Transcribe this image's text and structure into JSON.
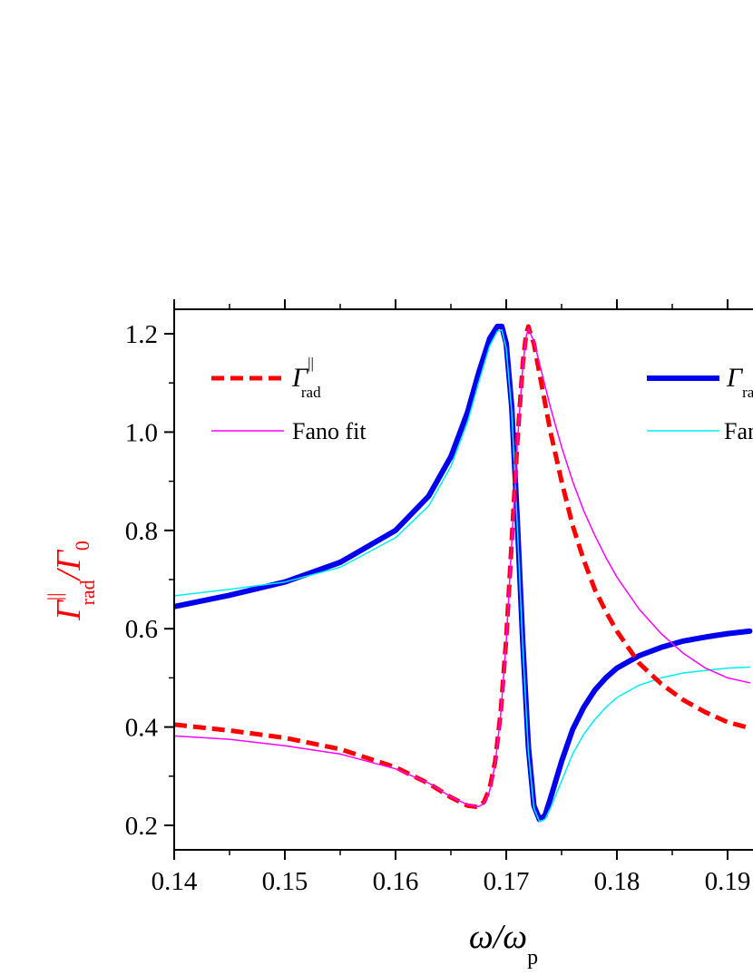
{
  "chart_data": {
    "type": "line",
    "xlabel": {
      "main": "ω/ω",
      "sub": "p"
    },
    "ylabel": {
      "main": "Γ",
      "sup": "||",
      "sub": "rad",
      "rest": "/Γ",
      "sub2": "0"
    },
    "xlim": [
      0.14,
      0.192
    ],
    "ylim": [
      0.15,
      1.25
    ],
    "xticks": [
      0.14,
      0.15,
      0.16,
      0.17,
      0.18,
      0.19
    ],
    "xtick_labels": [
      "0.14",
      "0.15",
      "0.16",
      "0.17",
      "0.18",
      "0.19"
    ],
    "yticks": [
      0.2,
      0.4,
      0.6,
      0.8,
      1.0,
      1.2
    ],
    "ytick_labels": [
      "0.2",
      "0.4",
      "0.6",
      "0.8",
      "1.0",
      "1.2"
    ],
    "grid": false,
    "legend_left": {
      "entries": [
        {
          "label_main": "Γ",
          "label_sup": "||",
          "label_sub": "rad",
          "series": "red-dashed"
        },
        {
          "label_main": "Fano fit",
          "series": "magenta"
        }
      ]
    },
    "legend_right": {
      "entries": [
        {
          "label_main": "Γ",
          "label_sub": "ra",
          "series": "blue-thick"
        },
        {
          "label_main": "Fan",
          "series": "cyan"
        }
      ]
    },
    "series": [
      {
        "id": "red-dashed",
        "color": "#ff0000",
        "style": "dashed",
        "x": [
          0.14,
          0.145,
          0.15,
          0.155,
          0.16,
          0.163,
          0.165,
          0.1665,
          0.1675,
          0.168,
          0.1685,
          0.169,
          0.1695,
          0.17,
          0.1705,
          0.171,
          0.1715,
          0.1718,
          0.172,
          0.1722,
          0.1725,
          0.173,
          0.1735,
          0.174,
          0.175,
          0.176,
          0.177,
          0.178,
          0.179,
          0.18,
          0.182,
          0.184,
          0.186,
          0.188,
          0.19,
          0.192
        ],
        "y": [
          0.405,
          0.393,
          0.378,
          0.355,
          0.318,
          0.285,
          0.257,
          0.24,
          0.237,
          0.248,
          0.275,
          0.33,
          0.43,
          0.58,
          0.78,
          0.98,
          1.14,
          1.2,
          1.215,
          1.2,
          1.18,
          1.12,
          1.06,
          1.0,
          0.9,
          0.81,
          0.74,
          0.68,
          0.635,
          0.595,
          0.53,
          0.488,
          0.455,
          0.43,
          0.41,
          0.398
        ]
      },
      {
        "id": "magenta",
        "color": "#ff00ff",
        "style": "solid",
        "x": [
          0.14,
          0.145,
          0.15,
          0.155,
          0.16,
          0.163,
          0.165,
          0.1665,
          0.1675,
          0.168,
          0.1685,
          0.169,
          0.1695,
          0.17,
          0.1705,
          0.171,
          0.1715,
          0.1718,
          0.172,
          0.1722,
          0.1725,
          0.173,
          0.1735,
          0.174,
          0.175,
          0.176,
          0.177,
          0.178,
          0.179,
          0.18,
          0.182,
          0.184,
          0.186,
          0.188,
          0.19,
          0.192
        ],
        "y": [
          0.382,
          0.375,
          0.362,
          0.345,
          0.315,
          0.286,
          0.258,
          0.242,
          0.238,
          0.245,
          0.27,
          0.325,
          0.425,
          0.575,
          0.775,
          0.975,
          1.135,
          1.195,
          1.21,
          1.2,
          1.185,
          1.14,
          1.095,
          1.05,
          0.97,
          0.9,
          0.84,
          0.79,
          0.745,
          0.705,
          0.64,
          0.59,
          0.55,
          0.52,
          0.5,
          0.49
        ]
      },
      {
        "id": "blue-thick",
        "color": "#0000ee",
        "style": "solid",
        "x": [
          0.14,
          0.145,
          0.15,
          0.155,
          0.16,
          0.163,
          0.165,
          0.1665,
          0.1675,
          0.1685,
          0.1692,
          0.1696,
          0.17,
          0.1705,
          0.171,
          0.1715,
          0.172,
          0.1725,
          0.173,
          0.1735,
          0.174,
          0.175,
          0.176,
          0.177,
          0.178,
          0.179,
          0.18,
          0.182,
          0.184,
          0.186,
          0.188,
          0.19,
          0.192
        ],
        "y": [
          0.645,
          0.668,
          0.695,
          0.735,
          0.8,
          0.87,
          0.95,
          1.04,
          1.12,
          1.19,
          1.215,
          1.215,
          1.18,
          1.05,
          0.82,
          0.57,
          0.36,
          0.24,
          0.212,
          0.22,
          0.255,
          0.33,
          0.395,
          0.44,
          0.475,
          0.5,
          0.52,
          0.545,
          0.562,
          0.575,
          0.583,
          0.59,
          0.595
        ]
      },
      {
        "id": "cyan",
        "color": "#00eeee",
        "style": "solid",
        "x": [
          0.14,
          0.145,
          0.15,
          0.155,
          0.16,
          0.163,
          0.165,
          0.1665,
          0.1675,
          0.1685,
          0.1692,
          0.1696,
          0.17,
          0.1705,
          0.171,
          0.1715,
          0.172,
          0.1725,
          0.173,
          0.1735,
          0.174,
          0.175,
          0.176,
          0.177,
          0.178,
          0.179,
          0.18,
          0.182,
          0.184,
          0.186,
          0.188,
          0.19,
          0.192
        ],
        "y": [
          0.667,
          0.68,
          0.695,
          0.725,
          0.785,
          0.85,
          0.93,
          1.02,
          1.1,
          1.175,
          1.205,
          1.208,
          1.17,
          1.04,
          0.81,
          0.56,
          0.35,
          0.235,
          0.208,
          0.212,
          0.235,
          0.29,
          0.345,
          0.385,
          0.415,
          0.44,
          0.46,
          0.485,
          0.5,
          0.51,
          0.515,
          0.52,
          0.522
        ]
      }
    ]
  }
}
